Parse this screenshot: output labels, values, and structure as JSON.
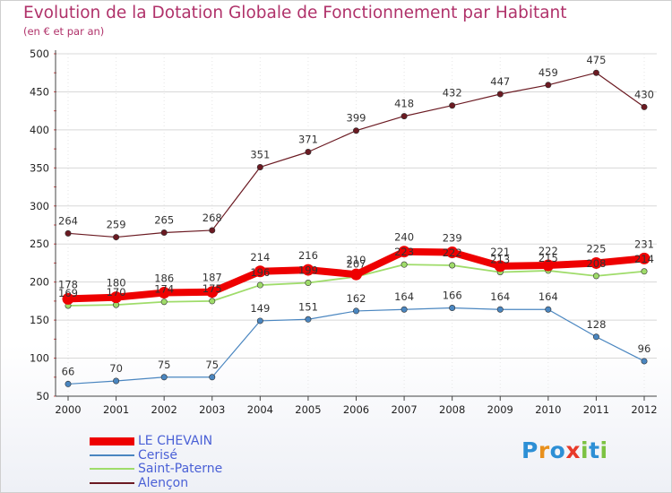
{
  "chart_data": {
    "type": "line",
    "title": "Evolution de la Dotation Globale de Fonctionnement par Habitant",
    "subtitle": "(en € et par an)",
    "xlabel": "",
    "ylabel": "",
    "x": [
      "2000",
      "2001",
      "2002",
      "2003",
      "2004",
      "2005",
      "2006",
      "2007",
      "2008",
      "2009",
      "2010",
      "2011",
      "2012"
    ],
    "ylim": [
      50,
      500
    ],
    "yticks": [
      50,
      100,
      150,
      200,
      250,
      300,
      350,
      400,
      450,
      500
    ],
    "grid": true,
    "legend_position": "bottom-left",
    "series": [
      {
        "name": "Alençon",
        "color": "#6b1a22",
        "width": 1.2,
        "labels": true,
        "values": [
          264,
          259,
          265,
          268,
          351,
          371,
          399,
          418,
          432,
          447,
          459,
          475,
          430
        ]
      },
      {
        "name": "Cerisé",
        "color": "#4a86c0",
        "width": 1.2,
        "labels": true,
        "values": [
          66,
          70,
          75,
          75,
          149,
          151,
          162,
          164,
          166,
          164,
          164,
          128,
          96
        ]
      },
      {
        "name": "Saint-Paterne",
        "color": "#9fdc6a",
        "width": 1.8,
        "labels": true,
        "values": [
          169,
          170,
          174,
          175,
          196,
          199,
          207,
          223,
          222,
          213,
          215,
          208,
          214
        ]
      },
      {
        "name": "LE CHEVAIN",
        "color": "#ee0000",
        "width": 8,
        "labels": true,
        "values": [
          178,
          180,
          186,
          187,
          214,
          216,
          210,
          240,
          239,
          221,
          222,
          225,
          231
        ]
      }
    ],
    "legend_order": [
      "LE CHEVAIN",
      "Cerisé",
      "Saint-Paterne",
      "Alençon"
    ]
  },
  "logo": {
    "text": "Proxiti",
    "letters": [
      "P",
      "r",
      "o",
      "x",
      "i",
      "t",
      "i"
    ]
  }
}
